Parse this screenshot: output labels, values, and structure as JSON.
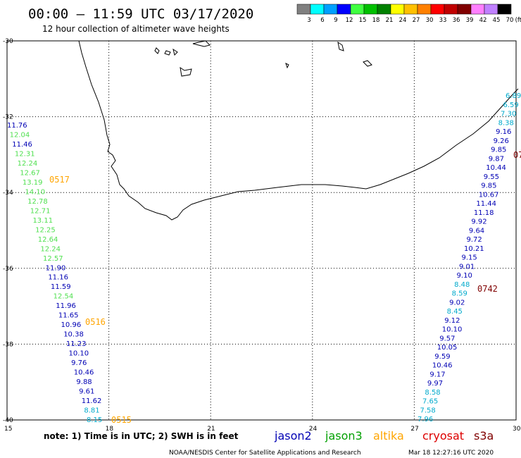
{
  "header": {
    "title": "00:00 – 11:59 UTC 03/17/2020",
    "subtitle": "12 hour collection of altimeter wave heights"
  },
  "color_scale": {
    "labels": [
      "3",
      "6",
      "9",
      "12",
      "15",
      "18",
      "21",
      "24",
      "27",
      "30",
      "33",
      "36",
      "39",
      "42",
      "45",
      "70"
    ],
    "unit": "(ft)",
    "colors": [
      "#808080",
      "#00ffff",
      "#00a0ff",
      "#0000ff",
      "#40ff40",
      "#00c000",
      "#008000",
      "#ffff00",
      "#ffc000",
      "#ff8000",
      "#ff0000",
      "#c00000",
      "#800000",
      "#ff80ff",
      "#c080ff",
      "#000000"
    ]
  },
  "axes": {
    "lat_labels": [
      "-30",
      "-32",
      "-34",
      "-36",
      "-38",
      "-40"
    ],
    "lon_labels": [
      "15",
      "18",
      "21",
      "24",
      "27",
      "30"
    ],
    "lat_range": [
      -40,
      -30
    ],
    "lon_range": [
      15,
      30
    ]
  },
  "colors": {
    "jason2": "#0000b4",
    "jason3": "#00a000",
    "altika": "#ffa500",
    "cryosat": "#dd0000",
    "s3a": "#800000",
    "green_obs": "#50e050",
    "cyan_obs": "#00aacc",
    "blue_obs": "#0000b4"
  },
  "tracks": {
    "west": [
      {
        "v": "11.76",
        "c": "blue_obs"
      },
      {
        "v": "12.04",
        "c": "green_obs"
      },
      {
        "v": "11.46",
        "c": "blue_obs"
      },
      {
        "v": "12.31",
        "c": "green_obs"
      },
      {
        "v": "12.24",
        "c": "green_obs"
      },
      {
        "v": "12.67",
        "c": "green_obs"
      },
      {
        "v": "13.19",
        "c": "green_obs"
      },
      {
        "v": "14.10",
        "c": "green_obs"
      },
      {
        "v": "12.78",
        "c": "green_obs"
      },
      {
        "v": "12.71",
        "c": "green_obs"
      },
      {
        "v": "13.11",
        "c": "green_obs"
      },
      {
        "v": "12.25",
        "c": "green_obs"
      },
      {
        "v": "12.64",
        "c": "green_obs"
      },
      {
        "v": "12.24",
        "c": "green_obs"
      },
      {
        "v": "12.57",
        "c": "green_obs"
      },
      {
        "v": "11.90",
        "c": "blue_obs"
      },
      {
        "v": "11.16",
        "c": "blue_obs"
      },
      {
        "v": "11.59",
        "c": "blue_obs"
      },
      {
        "v": "12.54",
        "c": "green_obs"
      },
      {
        "v": "11.96",
        "c": "blue_obs"
      },
      {
        "v": "11.65",
        "c": "blue_obs"
      },
      {
        "v": "10.96",
        "c": "blue_obs"
      },
      {
        "v": "10.38",
        "c": "blue_obs"
      },
      {
        "v": "11.23",
        "c": "blue_obs"
      },
      {
        "v": "10.10",
        "c": "blue_obs"
      },
      {
        "v": "9.76",
        "c": "blue_obs"
      },
      {
        "v": "10.46",
        "c": "blue_obs"
      },
      {
        "v": "9.88",
        "c": "blue_obs"
      },
      {
        "v": "9.61",
        "c": "blue_obs"
      },
      {
        "v": "11.62",
        "c": "blue_obs"
      },
      {
        "v": "8.81",
        "c": "cyan_obs"
      },
      {
        "v": "8.15",
        "c": "cyan_obs"
      }
    ],
    "east": [
      {
        "v": "6.89",
        "c": "cyan_obs"
      },
      {
        "v": "6.59",
        "c": "cyan_obs"
      },
      {
        "v": "7.30",
        "c": "cyan_obs"
      },
      {
        "v": "8.38",
        "c": "cyan_obs"
      },
      {
        "v": "9.16",
        "c": "blue_obs"
      },
      {
        "v": "9.26",
        "c": "blue_obs"
      },
      {
        "v": "9.85",
        "c": "blue_obs"
      },
      {
        "v": "9.87",
        "c": "blue_obs"
      },
      {
        "v": "10.44",
        "c": "blue_obs"
      },
      {
        "v": "9.55",
        "c": "blue_obs"
      },
      {
        "v": "9.85",
        "c": "blue_obs"
      },
      {
        "v": "10.67",
        "c": "blue_obs"
      },
      {
        "v": "11.44",
        "c": "blue_obs"
      },
      {
        "v": "11.18",
        "c": "blue_obs"
      },
      {
        "v": "9.92",
        "c": "blue_obs"
      },
      {
        "v": "9.64",
        "c": "blue_obs"
      },
      {
        "v": "9.72",
        "c": "blue_obs"
      },
      {
        "v": "10.21",
        "c": "blue_obs"
      },
      {
        "v": "9.15",
        "c": "blue_obs"
      },
      {
        "v": "9.01",
        "c": "blue_obs"
      },
      {
        "v": "9.10",
        "c": "blue_obs"
      },
      {
        "v": "8.48",
        "c": "cyan_obs"
      },
      {
        "v": "8.59",
        "c": "cyan_obs"
      },
      {
        "v": "9.02",
        "c": "blue_obs"
      },
      {
        "v": "8.45",
        "c": "cyan_obs"
      },
      {
        "v": "9.12",
        "c": "blue_obs"
      },
      {
        "v": "10.10",
        "c": "blue_obs"
      },
      {
        "v": "9.57",
        "c": "blue_obs"
      },
      {
        "v": "10.05",
        "c": "blue_obs"
      },
      {
        "v": "9.59",
        "c": "blue_obs"
      },
      {
        "v": "10.46",
        "c": "blue_obs"
      },
      {
        "v": "9.17",
        "c": "blue_obs"
      },
      {
        "v": "9.97",
        "c": "blue_obs"
      },
      {
        "v": "8.58",
        "c": "cyan_obs"
      },
      {
        "v": "7.65",
        "c": "cyan_obs"
      },
      {
        "v": "7.58",
        "c": "cyan_obs"
      },
      {
        "v": "7.96",
        "c": "cyan_obs"
      }
    ]
  },
  "pass_times": [
    {
      "t": "0517",
      "c": "altika"
    },
    {
      "t": "0516",
      "c": "altika"
    },
    {
      "t": "0515",
      "c": "altika"
    },
    {
      "t": "0742",
      "c": "s3a"
    },
    {
      "t": "07",
      "c": "s3a"
    }
  ],
  "footer": {
    "note": "note:  1) Time is in UTC;  2) SWH is in feet",
    "satellites": [
      {
        "name": "jason2",
        "c": "jason2"
      },
      {
        "name": "jason3",
        "c": "jason3"
      },
      {
        "name": "altika",
        "c": "altika"
      },
      {
        "name": "cryosat",
        "c": "cryosat"
      },
      {
        "name": "s3a",
        "c": "s3a"
      }
    ],
    "credit": "NOAA/NESDIS Center for Satellite Applications and Research",
    "timestamp": "Mar 18 12:27:16 UTC 2020"
  }
}
